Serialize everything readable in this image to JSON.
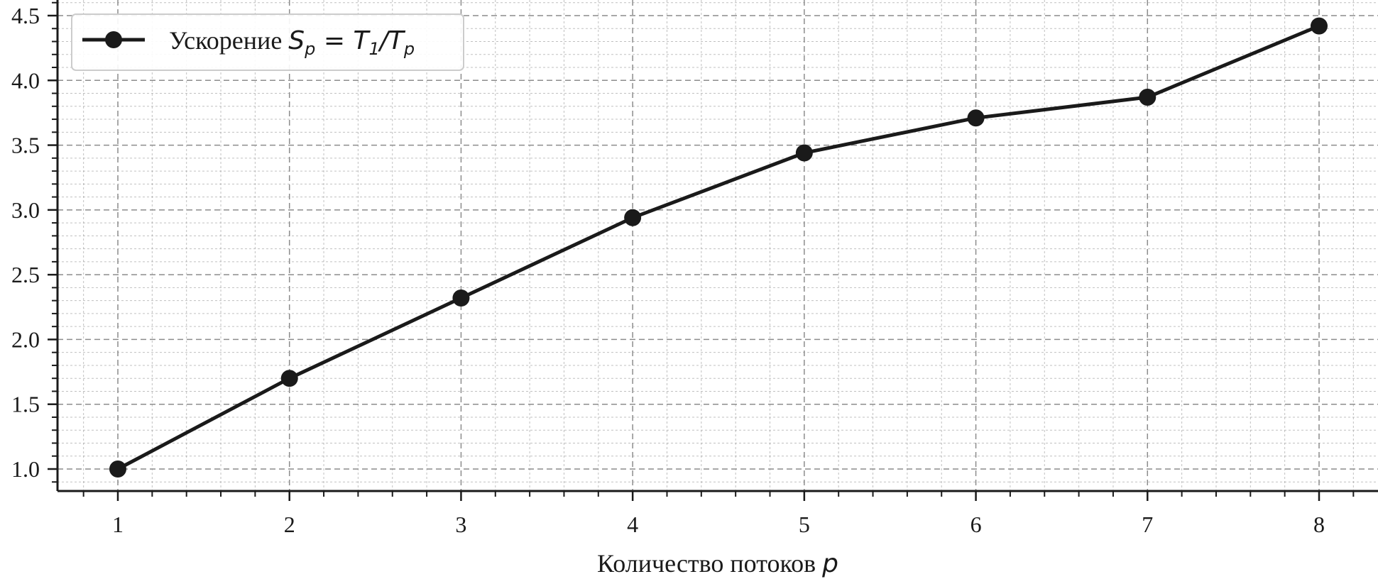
{
  "chart_data": {
    "type": "line",
    "x": [
      1,
      2,
      3,
      4,
      5,
      6,
      7,
      8
    ],
    "series": [
      {
        "name": "Ускорение S_p = T_1/T_p",
        "values": [
          1.0,
          1.7,
          2.32,
          2.94,
          3.44,
          3.71,
          3.87,
          4.42
        ]
      }
    ],
    "xlabel": "Количество потоков p",
    "ylabel": "",
    "xlim": [
      0.65,
      8.35
    ],
    "ylim": [
      0.83,
      4.53
    ],
    "x_ticks": [
      "1",
      "2",
      "3",
      "4",
      "5",
      "6",
      "7",
      "8"
    ],
    "y_ticks": [
      "1.0",
      "1.5",
      "2.0",
      "2.5",
      "3.0",
      "3.5",
      "4.0",
      "4.5"
    ],
    "grid": true,
    "minor_grid": true,
    "legend_position": "top-left",
    "line_color": "#1a1a1a",
    "grid_color": "#8c8c8c"
  },
  "legend": {
    "prefix": "Ускорение ",
    "formula_lhs": "S",
    "formula_lhs_sub": "p",
    "formula_eq": " = ",
    "formula_num": "T",
    "formula_num_sub": "1",
    "formula_div": "/",
    "formula_den": "T",
    "formula_den_sub": "p"
  },
  "xaxis_title": {
    "text": "Количество потоков ",
    "var": "p"
  }
}
